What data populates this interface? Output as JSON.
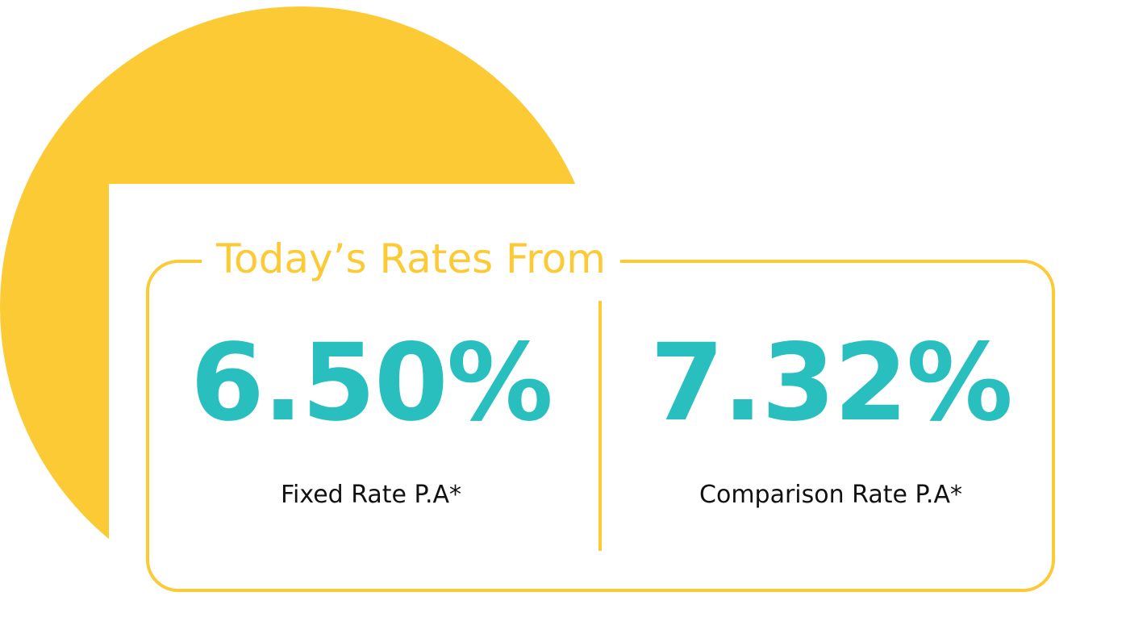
{
  "heading": "Today’s Rates From",
  "rates": [
    {
      "value": "6.50%",
      "label": "Fixed Rate P.A*"
    },
    {
      "value": "7.32%",
      "label": "Comparison Rate P.A*"
    }
  ],
  "colors": {
    "accent_yellow": "#FBCA35",
    "rate_teal": "#2ABFBF",
    "text_dark": "#111111",
    "background": "#FFFFFF"
  }
}
